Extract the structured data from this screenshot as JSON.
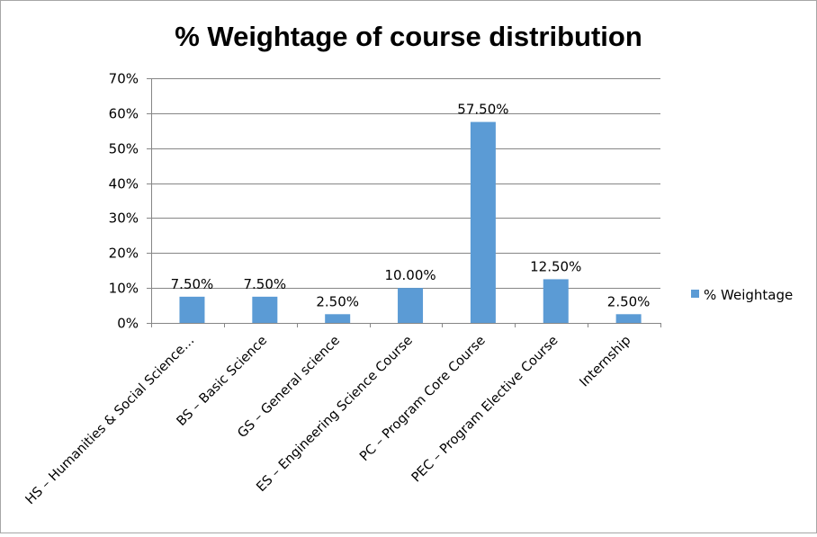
{
  "chart_data": {
    "type": "bar",
    "title": "% Weightage of course distribution",
    "xlabel": "",
    "ylabel": "",
    "categories": [
      "HS – Humanities & Social Science…",
      "BS – Basic Science",
      "GS – General science",
      "ES – Engineering Science Course",
      "PC – Program Core Course",
      "PEC – Program Elective Course",
      "Internship"
    ],
    "series": [
      {
        "name": "% Weightage",
        "values": [
          7.5,
          7.5,
          2.5,
          10.0,
          57.5,
          12.5,
          2.5
        ],
        "value_labels": [
          "7.50%",
          "7.50%",
          "2.50%",
          "10.00%",
          "57.50%",
          "12.50%",
          "2.50%"
        ],
        "color": "#5b9bd5"
      }
    ],
    "ylim": [
      0,
      70
    ],
    "y_ticks": [
      0,
      10,
      20,
      30,
      40,
      50,
      60,
      70
    ],
    "y_tick_labels": [
      "0%",
      "10%",
      "20%",
      "30%",
      "40%",
      "50%",
      "60%",
      "70%"
    ],
    "grid": true,
    "legend_position": "right"
  }
}
